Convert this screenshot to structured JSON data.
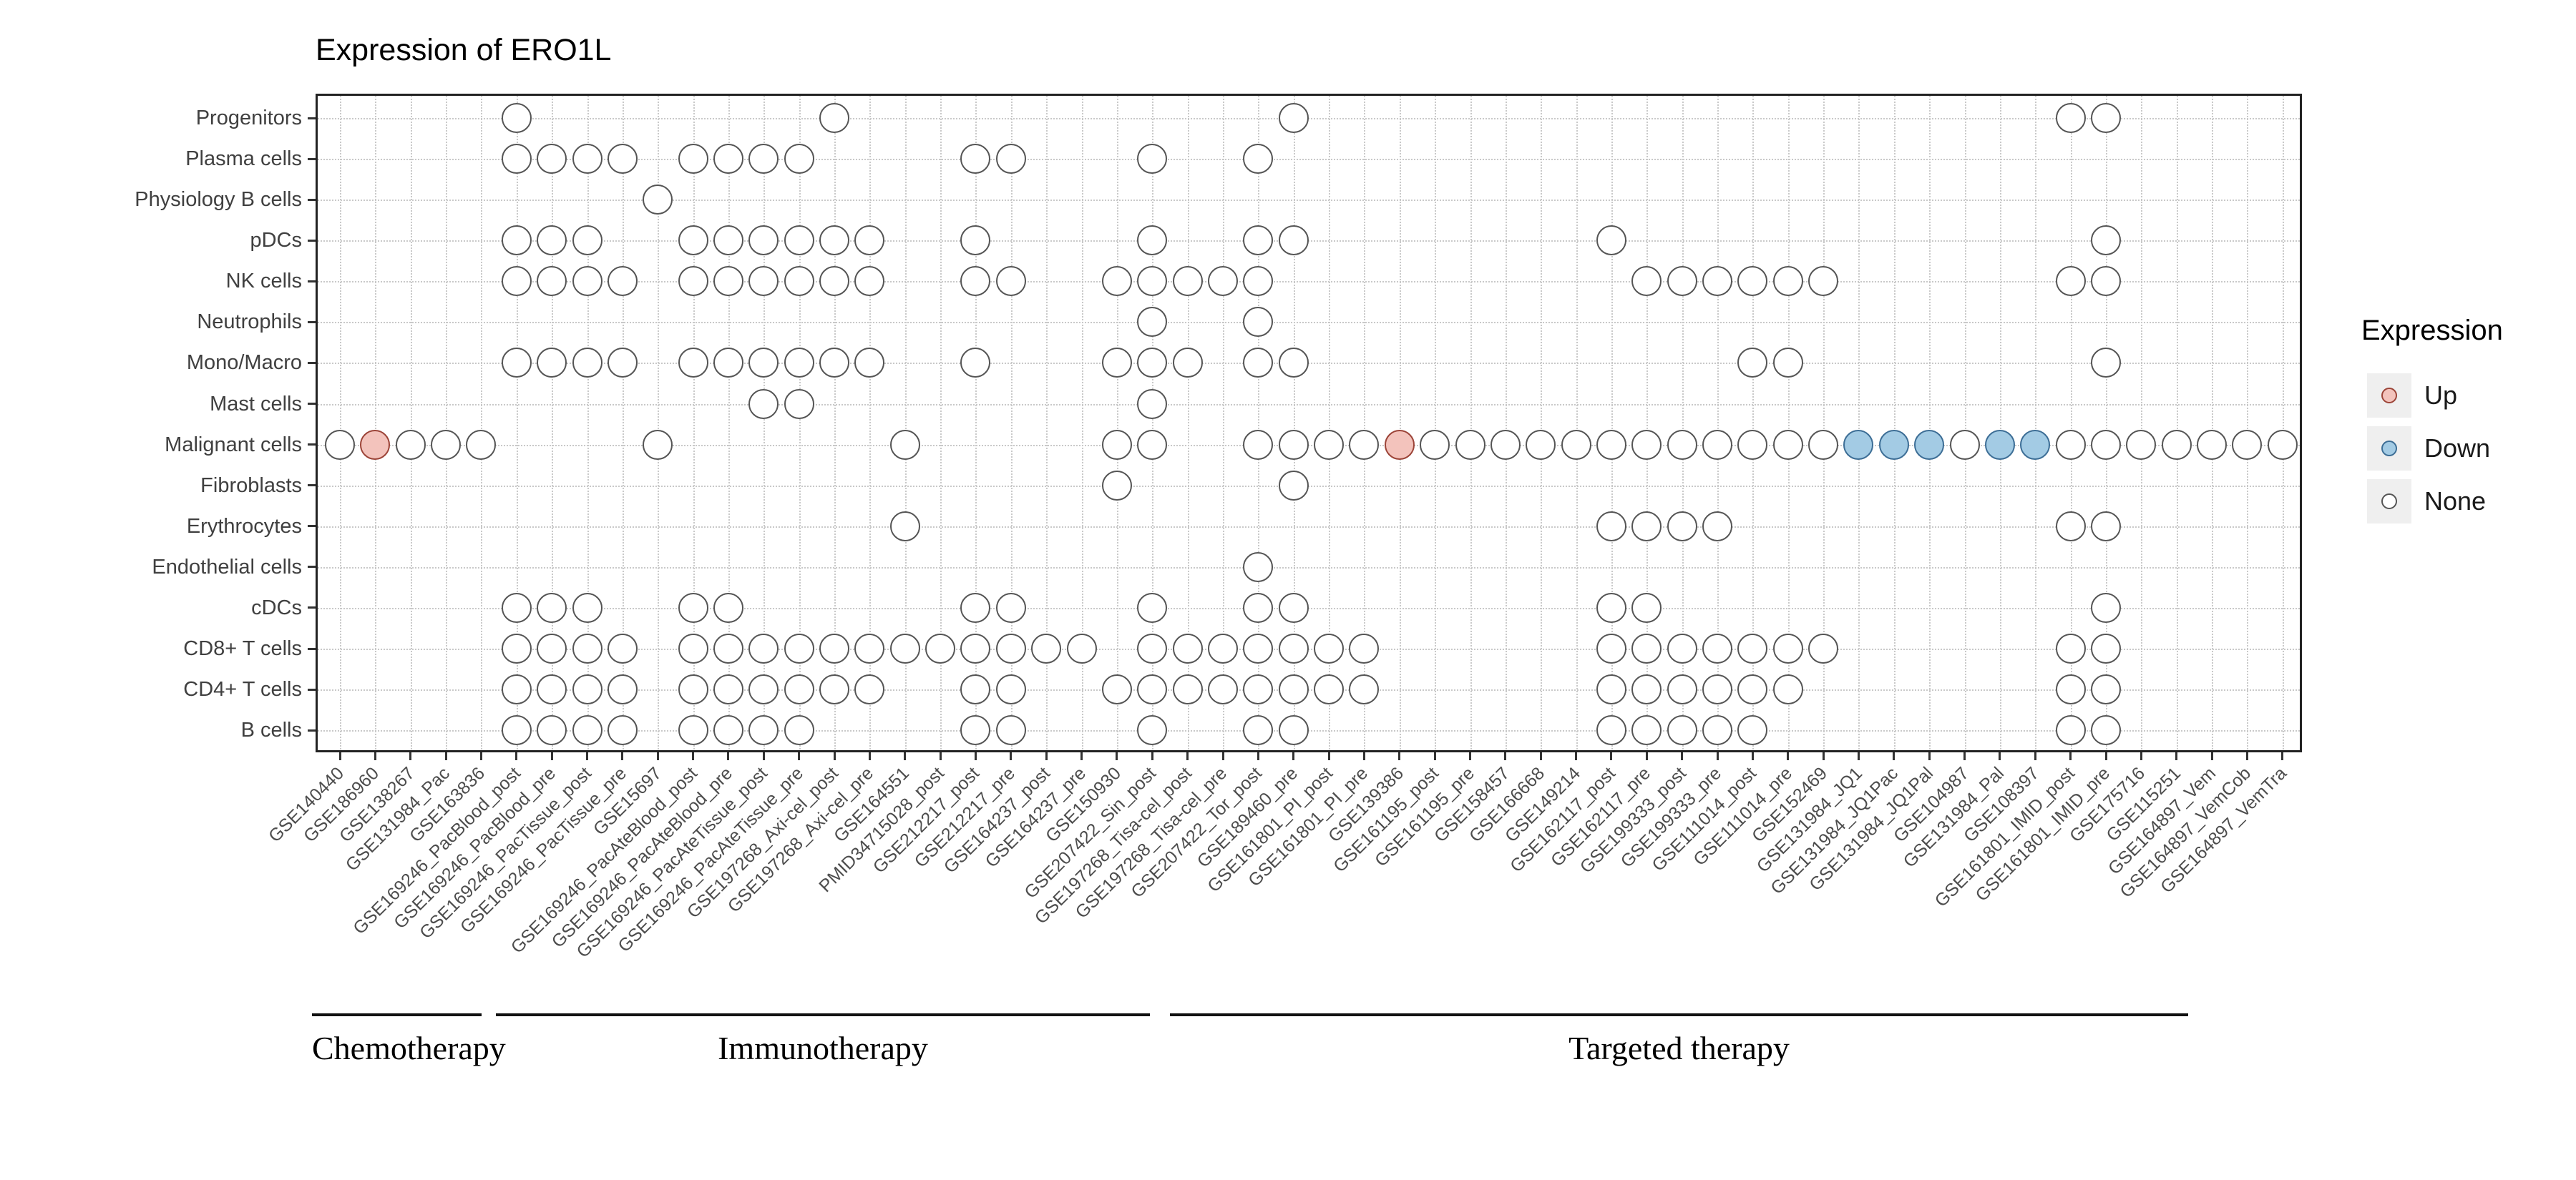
{
  "title": "Expression of ERO1L",
  "legend": {
    "title": "Expression",
    "items": [
      {
        "label": "Up",
        "color": "#F3C3BC",
        "stroke": "#9C4438"
      },
      {
        "label": "Down",
        "color": "#A3CBE4",
        "stroke": "#3D6E96"
      },
      {
        "label": "None",
        "color": "#FFFFFF",
        "stroke": "#555555"
      }
    ]
  },
  "chart_data": {
    "type": "scatter",
    "subtype": "dot-matrix",
    "title": "Expression of ERO1L",
    "xlabel": "",
    "ylabel": "",
    "legend_position": "right",
    "grid": "dotted",
    "columns": [
      "GSE140440",
      "GSE186960",
      "GSE138267",
      "GSE131984_Pac",
      "GSE163836",
      "GSE169246_PacBlood_post",
      "GSE169246_PacBlood_pre",
      "GSE169246_PacTissue_post",
      "GSE169246_PacTissue_pre",
      "GSE15697",
      "GSE169246_PacAteBlood_post",
      "GSE169246_PacAteBlood_pre",
      "GSE169246_PacAteTissue_post",
      "GSE169246_PacAteTissue_pre",
      "GSE197268_Axi-cel_post",
      "GSE197268_Axi-cel_pre",
      "GSE164551",
      "PMID34715028_post",
      "GSE212217_post",
      "GSE212217_pre",
      "GSE164237_post",
      "GSE164237_pre",
      "GSE150930",
      "GSE207422_Sin_post",
      "GSE197268_Tisa-cel_post",
      "GSE197268_Tisa-cel_pre",
      "GSE207422_Tor_post",
      "GSE189460_pre",
      "GSE161801_PI_post",
      "GSE161801_PI_pre",
      "GSE139386",
      "GSE161195_post",
      "GSE161195_pre",
      "GSE158457",
      "GSE166668",
      "GSE149214",
      "GSE162117_post",
      "GSE162117_pre",
      "GSE199333_post",
      "GSE199333_pre",
      "GSE111014_post",
      "GSE111014_pre",
      "GSE152469",
      "GSE131984_JQ1",
      "GSE131984_JQ1Pac",
      "GSE131984_JQ1Pal",
      "GSE104987",
      "GSE131984_Pal",
      "GSE108397",
      "GSE161801_IMID_post",
      "GSE161801_IMID_pre",
      "GSE175716",
      "GSE115251",
      "GSE164897_Vem",
      "GSE164897_VemCob",
      "GSE164897_VemTra"
    ],
    "groups": [
      {
        "label": "Chemotherapy",
        "cols": [
          1,
          5
        ]
      },
      {
        "label": "Immunotherapy",
        "cols": [
          6,
          24
        ]
      },
      {
        "label": "Targeted therapy",
        "cols": [
          25,
          56
        ]
      }
    ],
    "points": [
      {
        "cell_type": "Progenitors",
        "none": [
          6,
          15,
          28,
          50,
          51
        ],
        "up": [],
        "down": []
      },
      {
        "cell_type": "Plasma cells",
        "none": [
          6,
          7,
          8,
          9,
          11,
          12,
          13,
          14,
          19,
          20,
          24,
          27
        ],
        "up": [],
        "down": []
      },
      {
        "cell_type": "Physiology B cells",
        "none": [
          10
        ],
        "up": [],
        "down": []
      },
      {
        "cell_type": "pDCs",
        "none": [
          6,
          7,
          8,
          11,
          12,
          13,
          14,
          15,
          16,
          19,
          24,
          27,
          28,
          37,
          51
        ],
        "up": [],
        "down": []
      },
      {
        "cell_type": "NK cells",
        "none": [
          6,
          7,
          8,
          9,
          11,
          12,
          13,
          14,
          15,
          16,
          19,
          20,
          23,
          24,
          25,
          26,
          27,
          38,
          39,
          40,
          41,
          42,
          43,
          50,
          51
        ],
        "up": [],
        "down": []
      },
      {
        "cell_type": "Neutrophils",
        "none": [
          24,
          27
        ],
        "up": [],
        "down": []
      },
      {
        "cell_type": "Mono/Macro",
        "none": [
          6,
          7,
          8,
          9,
          11,
          12,
          13,
          14,
          15,
          16,
          19,
          23,
          24,
          25,
          27,
          28,
          41,
          42,
          51
        ],
        "up": [],
        "down": []
      },
      {
        "cell_type": "Mast cells",
        "none": [
          13,
          14,
          24
        ],
        "up": [],
        "down": []
      },
      {
        "cell_type": "Malignant cells",
        "none": [
          1,
          3,
          4,
          5,
          10,
          17,
          23,
          24,
          27,
          28,
          29,
          30,
          32,
          33,
          34,
          35,
          36,
          37,
          38,
          39,
          40,
          41,
          42,
          43,
          47,
          50,
          51,
          52,
          53,
          54,
          55,
          56
        ],
        "up": [
          2,
          31
        ],
        "down": [
          44,
          45,
          46,
          48,
          49
        ]
      },
      {
        "cell_type": "Fibroblasts",
        "none": [
          23,
          28
        ],
        "up": [],
        "down": []
      },
      {
        "cell_type": "Erythrocytes",
        "none": [
          17,
          37,
          38,
          39,
          40,
          50,
          51
        ],
        "up": [],
        "down": []
      },
      {
        "cell_type": "Endothelial cells",
        "none": [
          27
        ],
        "up": [],
        "down": []
      },
      {
        "cell_type": "cDCs",
        "none": [
          6,
          7,
          8,
          11,
          12,
          19,
          20,
          24,
          27,
          28,
          37,
          38,
          51
        ],
        "up": [],
        "down": []
      },
      {
        "cell_type": "CD8+ T cells",
        "none": [
          6,
          7,
          8,
          9,
          11,
          12,
          13,
          14,
          15,
          16,
          17,
          18,
          19,
          20,
          21,
          22,
          24,
          25,
          26,
          27,
          28,
          29,
          30,
          37,
          38,
          39,
          40,
          41,
          42,
          43,
          50,
          51
        ],
        "up": [],
        "down": []
      },
      {
        "cell_type": "CD4+ T cells",
        "none": [
          6,
          7,
          8,
          9,
          11,
          12,
          13,
          14,
          15,
          16,
          19,
          20,
          23,
          24,
          25,
          26,
          27,
          28,
          29,
          30,
          37,
          38,
          39,
          40,
          41,
          42,
          50,
          51
        ],
        "up": [],
        "down": []
      },
      {
        "cell_type": "B cells",
        "none": [
          6,
          7,
          8,
          9,
          11,
          12,
          13,
          14,
          19,
          20,
          24,
          27,
          28,
          37,
          38,
          39,
          40,
          41,
          50,
          51
        ],
        "up": [],
        "down": []
      }
    ]
  }
}
